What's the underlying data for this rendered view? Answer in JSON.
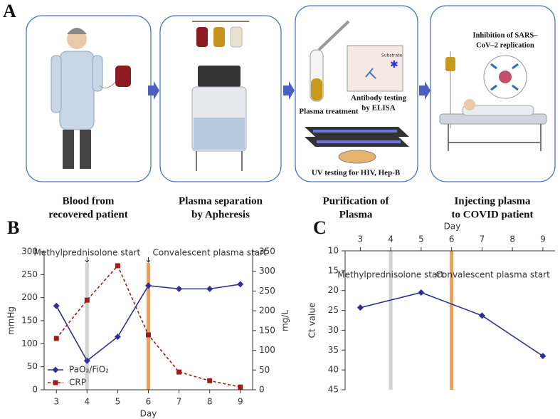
{
  "figure": {
    "panel_labels": [
      "A",
      "B",
      "C"
    ]
  },
  "diagram": {
    "steps": [
      {
        "caption": [
          "Blood from",
          "recovered patient"
        ]
      },
      {
        "caption": [
          "Plasma separation",
          "by Apheresis"
        ]
      },
      {
        "caption": [
          "Purification of",
          "Plasma"
        ]
      },
      {
        "caption": [
          "Injecting plasma",
          "to COVID patient"
        ]
      }
    ],
    "labels": {
      "plasma_treatment": "Plasma treatment",
      "antibody_testing": [
        "Antibody testing",
        "by ELISA"
      ],
      "substrate": "Substrate",
      "uv_testing": "UV testing for HIV, Hep-B",
      "inhibition": [
        "Inhibition of SARS–",
        "CoV–2 replication"
      ]
    }
  },
  "chart_data": [
    {
      "type": "line",
      "x": [
        3,
        4,
        5,
        6,
        7,
        8,
        9
      ],
      "xlim": [
        2.6,
        9.4
      ],
      "xticks": [
        3,
        4,
        5,
        6,
        7,
        8,
        9
      ],
      "xlabel": "Day",
      "ylabel": "mmHg",
      "ylim": [
        0,
        300
      ],
      "yticks": [
        0,
        50,
        100,
        150,
        200,
        250,
        300
      ],
      "y2label": "mg/L",
      "y2lim": [
        0,
        350
      ],
      "y2ticks": [
        0,
        50,
        100,
        150,
        200,
        250,
        300,
        350
      ],
      "series": [
        {
          "name": "PaO₂/FiO₂",
          "color": "#2e3192",
          "marker": "diamond",
          "linestyle": "solid",
          "values": [
            182,
            63,
            115,
            226,
            219,
            219,
            229
          ]
        },
        {
          "name": "CRP",
          "color": "#a01c1c",
          "marker": "square",
          "linestyle": "dashed",
          "axis": "y2",
          "values": [
            130,
            227,
            314,
            139,
            45,
            23,
            7
          ]
        }
      ],
      "bands": [
        {
          "x": 4,
          "color": "#d3d3d3",
          "label": "Methylprednisolone start"
        },
        {
          "x": 6,
          "color": "#e0a468",
          "label": "Convalescent plasma start"
        }
      ],
      "legend": "lower left"
    },
    {
      "type": "line",
      "x": [
        3,
        5,
        7,
        9
      ],
      "xlim": [
        2.5,
        9.4
      ],
      "xticks": [
        3,
        4,
        5,
        6,
        7,
        8,
        9
      ],
      "xlabel": "Day",
      "xaxis": "top",
      "ylabel": "Ct value",
      "ylim": [
        10,
        45
      ],
      "yticks": [
        10,
        15,
        20,
        25,
        30,
        35,
        40,
        45
      ],
      "invert_y": true,
      "values": [
        24.3,
        20.5,
        26.3,
        36.5
      ],
      "color": "#2e3192",
      "marker": "diamond",
      "linestyle": "solid",
      "bands": [
        {
          "x": 4,
          "color": "#d3d3d3",
          "label": "Methylprednisolone start"
        },
        {
          "x": 6,
          "color": "#e0a468",
          "label": "Convalescent plasma start"
        }
      ]
    }
  ]
}
